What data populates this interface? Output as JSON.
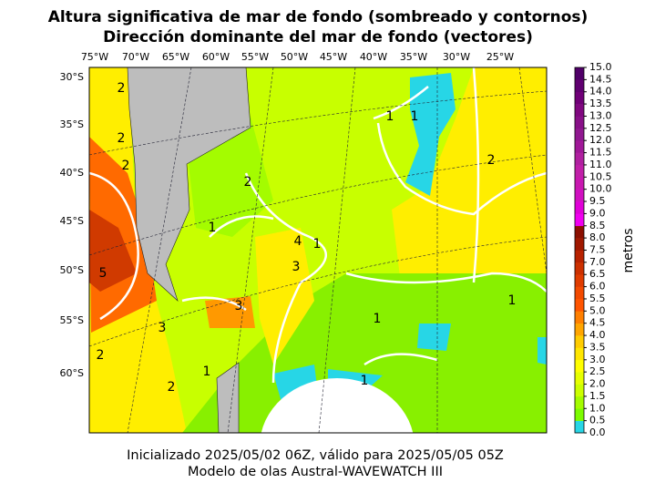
{
  "title": [
    "Altura significativa de mar de fondo (sombreado y contornos)",
    "Dirección dominante del mar de fondo (vectores)"
  ],
  "longitude_labels": [
    "75°W",
    "70°W",
    "65°W",
    "60°W",
    "55°W",
    "50°W",
    "45°W",
    "40°W",
    "35°W",
    "30°W",
    "25°W"
  ],
  "latitude_labels": [
    "30°S",
    "35°S",
    "40°S",
    "45°S",
    "50°S",
    "55°S",
    "60°S"
  ],
  "contour_labels": [
    "2",
    "2",
    "1",
    "2",
    "1",
    "1",
    "4",
    "3",
    "1",
    "2",
    "3",
    "5",
    "2",
    "3",
    "1",
    "1",
    "1",
    "2",
    "1",
    "2"
  ],
  "colorbar": {
    "label": "metros",
    "ticks": [
      "0.0",
      "0.5",
      "1.0",
      "1.5",
      "2.0",
      "2.5",
      "3.0",
      "3.5",
      "4.0",
      "4.5",
      "5.0",
      "5.5",
      "6.0",
      "6.5",
      "7.0",
      "7.5",
      "8.0",
      "8.5",
      "9.0",
      "9.5",
      "10.0",
      "10.5",
      "11.0",
      "11.5",
      "12.0",
      "12.5",
      "13.0",
      "13.5",
      "14.0",
      "14.5",
      "15.0"
    ],
    "colors": [
      "#27d6e6",
      "#7cfc00",
      "#a4fc00",
      "#ccff00",
      "#e6ff00",
      "#ffff00",
      "#ffe600",
      "#ffcc00",
      "#ffa500",
      "#ff7f00",
      "#ff5500",
      "#f24a00",
      "#e03c00",
      "#cc3000",
      "#b82200",
      "#a01800",
      "#8b0f00",
      "#f000f0",
      "#e000d8",
      "#d010c0",
      "#c818b0",
      "#c020a8",
      "#b020a0",
      "#a01898",
      "#901890",
      "#881088",
      "#800880",
      "#700078",
      "#600070",
      "#500068"
    ]
  },
  "footer": [
    "Inicializado 2025/05/02 06Z, válido para 2025/05/05 05Z",
    "Modelo de olas Austral-WAVEWATCH III"
  ]
}
